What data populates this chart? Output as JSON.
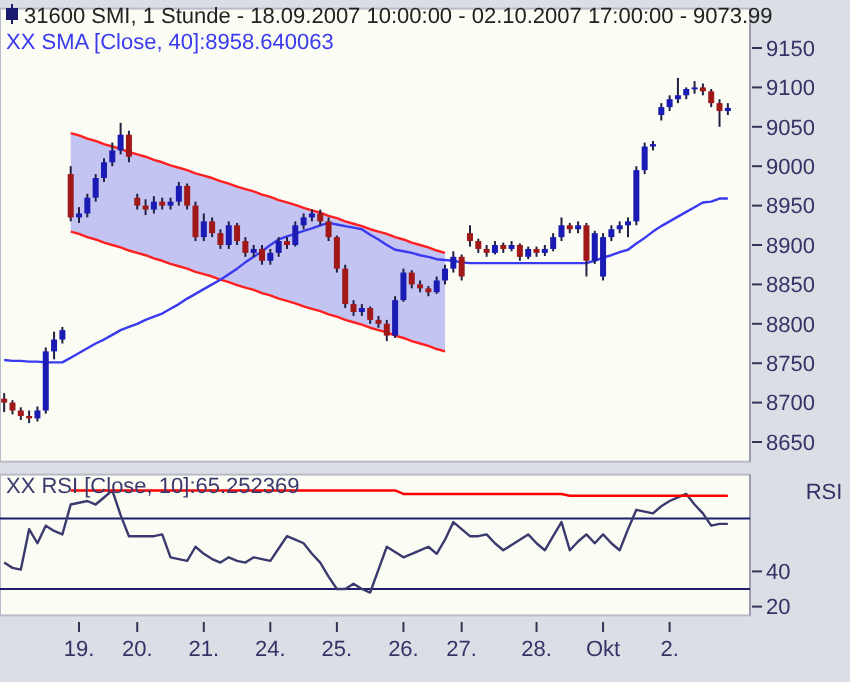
{
  "chart_data": [
    {
      "type": "candlestick",
      "title": "31600  SMI, 1 Stunde - 18.09.2007 10:00:00 - 02.10.2007 17:00:00 - 9073.99",
      "legend": "top left",
      "tick_labels": "y",
      "categories": [
        null,
        null,
        null,
        null,
        null,
        null,
        null,
        null,
        null,
        null,
        null,
        null,
        null,
        null,
        null,
        null,
        null,
        null,
        null,
        null,
        null,
        null,
        null,
        null,
        null,
        null,
        null,
        null,
        null,
        null,
        null,
        null,
        null,
        null,
        null,
        null,
        null,
        null,
        null,
        null,
        null,
        null,
        null,
        null,
        null,
        null,
        null,
        null,
        null,
        null,
        null,
        null,
        null,
        null,
        null,
        null,
        null,
        null,
        null,
        null,
        null,
        null,
        null,
        null,
        null,
        null,
        null,
        null,
        null,
        null,
        null,
        null,
        null,
        null,
        null,
        null,
        null,
        null,
        null,
        null,
        null,
        null,
        null,
        null,
        null,
        null,
        null,
        null
      ],
      "ohlc": [
        [
          8705,
          8712,
          8688,
          8700
        ],
        [
          8700,
          8703,
          8685,
          8690
        ],
        [
          8690,
          8694,
          8678,
          8683
        ],
        [
          8683,
          8690,
          8674,
          8680
        ],
        [
          8680,
          8695,
          8676,
          8690
        ],
        [
          8690,
          8770,
          8686,
          8765
        ],
        [
          8765,
          8790,
          8755,
          8780
        ],
        [
          8780,
          8796,
          8775,
          8792
        ],
        [
          8990,
          9000,
          8930,
          8935
        ],
        [
          8935,
          8948,
          8928,
          8940
        ],
        [
          8940,
          8965,
          8935,
          8960
        ],
        [
          8960,
          8990,
          8955,
          8985
        ],
        [
          8985,
          9010,
          8980,
          9005
        ],
        [
          9005,
          9030,
          9000,
          9020
        ],
        [
          9020,
          9055,
          9015,
          9040
        ],
        [
          9040,
          9045,
          9005,
          9012
        ],
        [
          8960,
          8965,
          8945,
          8950
        ],
        [
          8950,
          8958,
          8938,
          8945
        ],
        [
          8945,
          8962,
          8940,
          8955
        ],
        [
          8955,
          8960,
          8945,
          8950
        ],
        [
          8950,
          8960,
          8945,
          8955
        ],
        [
          8955,
          8980,
          8950,
          8975
        ],
        [
          8975,
          8978,
          8945,
          8950
        ],
        [
          8950,
          8955,
          8905,
          8910
        ],
        [
          8910,
          8940,
          8905,
          8930
        ],
        [
          8930,
          8935,
          8910,
          8915
        ],
        [
          8915,
          8920,
          8895,
          8900
        ],
        [
          8900,
          8930,
          8895,
          8925
        ],
        [
          8925,
          8928,
          8900,
          8905
        ],
        [
          8905,
          8910,
          8885,
          8890
        ],
        [
          8890,
          8900,
          8885,
          8895
        ],
        [
          8895,
          8900,
          8875,
          8880
        ],
        [
          8880,
          8895,
          8875,
          8890
        ],
        [
          8890,
          8910,
          8885,
          8905
        ],
        [
          8905,
          8910,
          8895,
          8900
        ],
        [
          8900,
          8930,
          8898,
          8925
        ],
        [
          8925,
          8940,
          8920,
          8935
        ],
        [
          8935,
          8945,
          8930,
          8940
        ],
        [
          8940,
          8945,
          8925,
          8930
        ],
        [
          8930,
          8935,
          8905,
          8910
        ],
        [
          8910,
          8912,
          8865,
          8870
        ],
        [
          8870,
          8875,
          8820,
          8825
        ],
        [
          8825,
          8830,
          8810,
          8815
        ],
        [
          8815,
          8825,
          8810,
          8820
        ],
        [
          8820,
          8822,
          8800,
          8805
        ],
        [
          8805,
          8810,
          8795,
          8800
        ],
        [
          8800,
          8805,
          8778,
          8785
        ],
        [
          8785,
          8835,
          8782,
          8830
        ],
        [
          8830,
          8870,
          8828,
          8865
        ],
        [
          8865,
          8868,
          8845,
          8850
        ],
        [
          8850,
          8855,
          8840,
          8845
        ],
        [
          8845,
          8848,
          8835,
          8840
        ],
        [
          8840,
          8860,
          8838,
          8855
        ],
        [
          8855,
          8875,
          8850,
          8870
        ],
        [
          8870,
          8892,
          8865,
          8885
        ],
        [
          8885,
          8888,
          8855,
          8860
        ],
        [
          8915,
          8925,
          8898,
          8905
        ],
        [
          8905,
          8908,
          8890,
          8895
        ],
        [
          8895,
          8900,
          8885,
          8890
        ],
        [
          8890,
          8905,
          8888,
          8900
        ],
        [
          8900,
          8903,
          8890,
          8895
        ],
        [
          8895,
          8905,
          8892,
          8900
        ],
        [
          8900,
          8902,
          8880,
          8885
        ],
        [
          8885,
          8898,
          8882,
          8895
        ],
        [
          8895,
          8898,
          8885,
          8890
        ],
        [
          8890,
          8900,
          8886,
          8895
        ],
        [
          8895,
          8915,
          8892,
          8910
        ],
        [
          8910,
          8935,
          8905,
          8925
        ],
        [
          8925,
          8928,
          8915,
          8920
        ],
        [
          8920,
          8930,
          8915,
          8925
        ],
        [
          8925,
          8928,
          8860,
          8880
        ],
        [
          8880,
          8918,
          8876,
          8915
        ],
        [
          8860,
          8915,
          8855,
          8910
        ],
        [
          8910,
          8925,
          8905,
          8920
        ],
        [
          8920,
          8930,
          8915,
          8925
        ],
        [
          8925,
          8935,
          8910,
          8930
        ],
        [
          8930,
          9000,
          8925,
          8995
        ],
        [
          8995,
          9030,
          8990,
          9025
        ],
        [
          9025,
          9032,
          9020,
          9028
        ],
        [
          9065,
          9080,
          9058,
          9075
        ],
        [
          9075,
          9090,
          9070,
          9085
        ],
        [
          9085,
          9112,
          9080,
          9090
        ],
        [
          9090,
          9100,
          9085,
          9098
        ],
        [
          9098,
          9108,
          9092,
          9100
        ],
        [
          9100,
          9105,
          9090,
          9095
        ],
        [
          9095,
          9098,
          9075,
          9080
        ],
        [
          9080,
          9085,
          9050,
          9070
        ],
        [
          9070,
          9080,
          9065,
          9074
        ]
      ],
      "series": [
        {
          "type": "line",
          "color": "#ff2020",
          "values": [
            null,
            null,
            null,
            null,
            null,
            null,
            null,
            null,
            9042,
            9039,
            9035,
            9032,
            9028,
            9025,
            9022,
            9018,
            9015,
            9012,
            9008,
            9005,
            9001,
            8998,
            8995,
            8991,
            8988,
            8985,
            8981,
            8978,
            8974,
            8971,
            8968,
            8964,
            8961,
            8957,
            8954,
            8951,
            8947,
            8944,
            8941,
            8937,
            8934,
            8930,
            8927,
            8924,
            8920,
            8917,
            8914,
            8910,
            8907,
            8903,
            8900,
            8897,
            8893,
            8890,
            null,
            null,
            null,
            null,
            null,
            null,
            null,
            null,
            null,
            null,
            null,
            null,
            null,
            null,
            null,
            null,
            null,
            null,
            null,
            null,
            null,
            null,
            null,
            null,
            null,
            null,
            null,
            null,
            null,
            null,
            null,
            null,
            null,
            null
          ],
          "lower": [
            null,
            null,
            null,
            null,
            null,
            null,
            null,
            null,
            8917,
            8914,
            8910,
            8907,
            8903,
            8900,
            8897,
            8893,
            8890,
            8887,
            8883,
            8880,
            8876,
            8873,
            8870,
            8866,
            8863,
            8860,
            8856,
            8853,
            8849,
            8846,
            8843,
            8839,
            8836,
            8832,
            8829,
            8826,
            8822,
            8819,
            8816,
            8812,
            8809,
            8805,
            8802,
            8799,
            8795,
            8792,
            8789,
            8785,
            8782,
            8778,
            8775,
            8772,
            8768,
            8765,
            null,
            null,
            null,
            null,
            null,
            null,
            null,
            null,
            null,
            null,
            null,
            null,
            null,
            null,
            null,
            null,
            null,
            null,
            null,
            null,
            null,
            null,
            null,
            null,
            null,
            null,
            null,
            null,
            null,
            null,
            null,
            null,
            null,
            null
          ],
          "upper": [
            null,
            null,
            null,
            null,
            null,
            null,
            null,
            null,
            9042,
            9039,
            9035,
            9032,
            9028,
            9025,
            9022,
            9018,
            9015,
            9012,
            9008,
            9005,
            9001,
            8998,
            8995,
            8991,
            8988,
            8985,
            8981,
            8978,
            8974,
            8971,
            8968,
            8964,
            8961,
            8957,
            8954,
            8951,
            8947,
            8944,
            8941,
            8937,
            8934,
            8930,
            8927,
            8924,
            8920,
            8917,
            8914,
            8910,
            8907,
            8903,
            8900,
            8897,
            8893,
            8890,
            null,
            null,
            null,
            null,
            null,
            null,
            null,
            null,
            null,
            null,
            null,
            null,
            null,
            null,
            null,
            null,
            null,
            null,
            null,
            null,
            null,
            null,
            null,
            null,
            null,
            null,
            null,
            null,
            null,
            null,
            null,
            null,
            null,
            null
          ]
        },
        {
          "type": "line",
          "color": "#ff2020",
          "values": [
            null,
            null,
            null,
            null,
            null,
            null,
            null,
            null,
            8917,
            8914,
            8910,
            8907,
            8903,
            8900,
            8897,
            8893,
            8890,
            8887,
            8883,
            8880,
            8876,
            8873,
            8870,
            8866,
            8863,
            8860,
            8856,
            8853,
            8849,
            8846,
            8843,
            8839,
            8836,
            8832,
            8829,
            8826,
            8822,
            8819,
            8816,
            8812,
            8809,
            8805,
            8802,
            8799,
            8795,
            8792,
            8789,
            8785,
            8782,
            8778,
            8775,
            8772,
            8768,
            8765,
            null,
            null,
            null,
            null,
            null,
            null,
            null,
            null,
            null,
            null,
            null,
            null,
            null,
            null,
            null,
            null,
            null,
            null,
            null,
            null,
            null,
            null,
            null,
            null,
            null,
            null,
            null,
            null,
            null,
            null,
            null,
            null,
            null,
            null
          ]
        },
        {
          "type": "line",
          "name": "XX SMA [Close, 40]:8958.640063",
          "color": "#3a3aee",
          "values": [
            8754,
            8753,
            8753,
            8752,
            8752,
            8751,
            8751,
            8751,
            8757,
            8763,
            8769,
            8775,
            8780,
            8786,
            8792,
            8796,
            8800,
            8805,
            8809,
            8813,
            8819,
            8825,
            8832,
            8838,
            8844,
            8850,
            8856,
            8863,
            8870,
            8878,
            8885,
            8892,
            8900,
            8907,
            8911,
            8914,
            8918,
            8921,
            8925,
            8928,
            8926,
            8924,
            8922,
            8920,
            8913,
            8907,
            8900,
            8894,
            8892,
            8890,
            8887,
            8885,
            8882,
            8881,
            8880,
            8878,
            8877,
            8877,
            8877,
            8877,
            8877,
            8877,
            8877,
            8877,
            8877,
            8877,
            8877,
            8877,
            8877,
            8877,
            8877,
            8880,
            8884,
            8887,
            8891,
            8894,
            8902,
            8909,
            8917,
            8924,
            8930,
            8936,
            8942,
            8948,
            8954,
            8955,
            8959,
            8959
          ]
        }
      ],
      "ylim": [
        8625,
        9200
      ],
      "yticks": [
        8650,
        8700,
        8750,
        8800,
        8850,
        8900,
        8950,
        9000,
        9050,
        9100,
        9150
      ]
    },
    {
      "type": "line",
      "legend": "top left",
      "ylabel": "RSI",
      "categories": [
        null,
        null,
        null,
        null,
        null,
        null,
        null,
        null,
        null,
        "19.",
        null,
        null,
        null,
        null,
        null,
        null,
        "20.",
        null,
        null,
        null,
        null,
        null,
        null,
        null,
        "21.",
        null,
        null,
        null,
        null,
        null,
        null,
        null,
        "24.",
        null,
        null,
        null,
        null,
        null,
        null,
        null,
        "25.",
        null,
        null,
        null,
        null,
        null,
        null,
        null,
        "26.",
        null,
        null,
        null,
        null,
        null,
        null,
        "27.",
        null,
        null,
        null,
        null,
        null,
        null,
        null,
        null,
        "28.",
        null,
        null,
        null,
        null,
        null,
        null,
        null,
        "Okt",
        null,
        null,
        null,
        null,
        null,
        null,
        null,
        "2.",
        null,
        null,
        null,
        null,
        null,
        null,
        null
      ],
      "series": [
        {
          "name": "XX RSI [Close, 10]:65.252369",
          "color": "#3a3a6e",
          "values": [
            45,
            42,
            41,
            64,
            56,
            66,
            63,
            61,
            78,
            79,
            80,
            78,
            82,
            86,
            72,
            60,
            60,
            60,
            60,
            61,
            48,
            47,
            46,
            54,
            50,
            47,
            45,
            48,
            46,
            45,
            48,
            47,
            46,
            53,
            60,
            58,
            56,
            50,
            45,
            37,
            30,
            30,
            33,
            30,
            28,
            41,
            54,
            51,
            48,
            50,
            52,
            54,
            50,
            58,
            68,
            64,
            60,
            60,
            61,
            56,
            52,
            55,
            58,
            61,
            56,
            52,
            60,
            68,
            52,
            57,
            61,
            56,
            61,
            56,
            52,
            64,
            75,
            74,
            73,
            77,
            80,
            82,
            84,
            78,
            73,
            66,
            67,
            67
          ]
        },
        {
          "color": "#ff0000",
          "values": [
            null,
            null,
            null,
            null,
            null,
            null,
            null,
            null,
            86,
            86,
            86,
            86,
            86,
            86,
            86,
            86,
            86,
            86,
            86,
            86,
            86,
            86,
            86,
            86,
            86,
            86,
            86,
            86,
            86,
            86,
            86,
            86,
            86,
            86,
            86,
            86,
            86,
            86,
            86,
            86,
            86,
            86,
            86,
            86,
            86,
            86,
            86,
            86,
            84,
            84,
            84,
            84,
            84,
            84,
            84,
            84,
            84,
            84,
            84,
            84,
            84,
            84,
            84,
            84,
            84,
            84,
            84,
            84,
            83,
            83,
            83,
            83,
            83,
            83,
            83,
            83,
            83,
            83,
            83,
            83,
            83,
            83,
            83,
            83,
            83,
            83,
            83,
            83
          ]
        }
      ],
      "ref_lines": [
        {
          "axis": "y",
          "value": 70,
          "color": "#1e1e6e"
        },
        {
          "axis": "y",
          "value": 30,
          "color": "#1e1e6e"
        }
      ],
      "ylim": [
        15,
        95
      ],
      "yticks": [
        20,
        40
      ]
    }
  ]
}
